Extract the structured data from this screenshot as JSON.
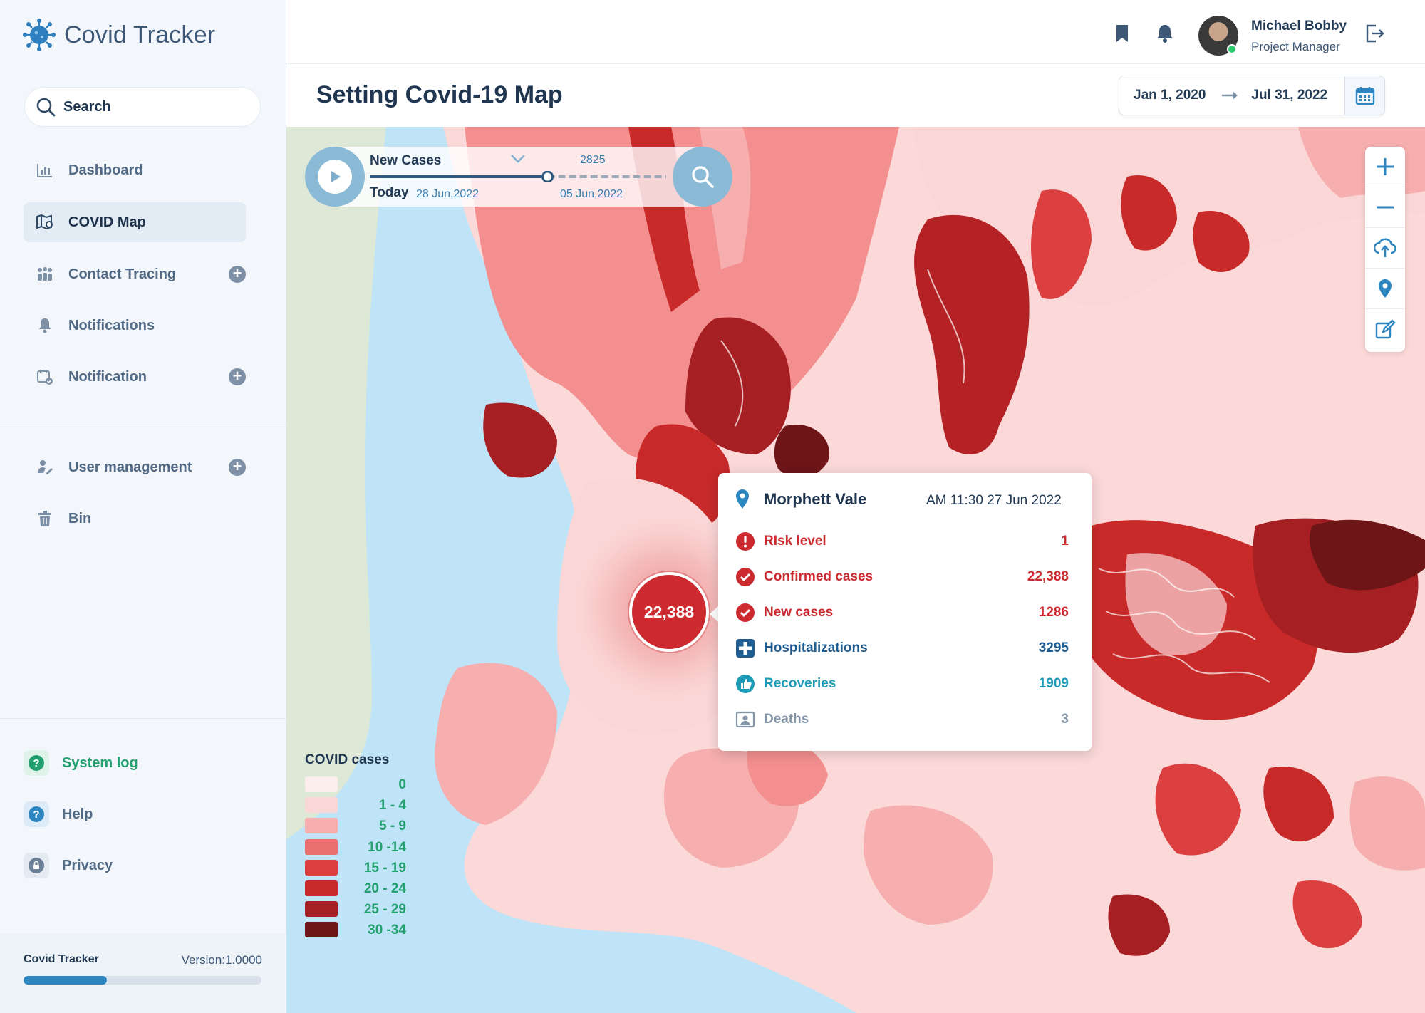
{
  "app": {
    "name": "Covid Tracker"
  },
  "search": {
    "placeholder": "Search"
  },
  "nav": [
    {
      "label": "Dashboard",
      "icon": "bar-chart-icon",
      "active": false
    },
    {
      "label": "COVID Map",
      "icon": "map-icon",
      "active": true
    },
    {
      "label": "Contact Tracing",
      "icon": "people-icon",
      "active": false
    },
    {
      "label": "Notifications",
      "icon": "bell-icon",
      "active": false
    },
    {
      "label": "Notification",
      "icon": "calendar-check-icon",
      "active": false
    },
    {
      "label": "User management",
      "icon": "user-edit-icon",
      "active": false
    },
    {
      "label": "Bin",
      "icon": "trash-icon",
      "active": false
    }
  ],
  "bottom_links": [
    {
      "label": "System log",
      "icon": "question-icon",
      "color": "#24a070"
    },
    {
      "label": "Help",
      "icon": "help-icon",
      "color": "#2e86c1"
    },
    {
      "label": "Privacy",
      "icon": "lock-icon",
      "color": "#526a85"
    }
  ],
  "footer": {
    "name": "Covid Tracker",
    "version": "Version:1.0000",
    "progress": 0.35
  },
  "user": {
    "name": "Michael Bobby",
    "role": "Project Manager",
    "status": "online"
  },
  "page": {
    "title": "Setting Covid-19 Map"
  },
  "date_range": {
    "start": "Jan 1, 2020",
    "end": "Jul 31, 2022"
  },
  "player": {
    "metric": "New Cases",
    "value": "2825",
    "today_label": "Today",
    "start_date": "28 Jun,2022",
    "end_date": "05 Jun,2022",
    "position": 0.6
  },
  "map_tools": [
    "zoom-in-icon",
    "zoom-out-icon",
    "upload-cloud-icon",
    "location-pin-icon",
    "edit-icon"
  ],
  "cluster": {
    "value": "22,388"
  },
  "popup": {
    "place": "Morphett Vale",
    "time": "AM 11:30 27 Jun 2022",
    "rows": [
      {
        "label": "RIsk level",
        "value": "1",
        "color": "#cc2a2f",
        "icon": "alert-icon"
      },
      {
        "label": "Confirmed cases",
        "value": "22,388",
        "color": "#cc2a2f",
        "icon": "check-circle-icon"
      },
      {
        "label": "New cases",
        "value": "1286",
        "color": "#cc2a2f",
        "icon": "check-circle-icon"
      },
      {
        "label": "Hospitalizations",
        "value": "3295",
        "color": "#1f5c8f",
        "icon": "hospital-cross-icon"
      },
      {
        "label": "Recoveries",
        "value": "1909",
        "color": "#1f9bb8",
        "icon": "thumbs-up-icon"
      },
      {
        "label": "Deaths",
        "value": "3",
        "color": "#8496a8",
        "icon": "portrait-icon"
      }
    ]
  },
  "legend": {
    "title": "COVID cases",
    "items": [
      {
        "label": "0",
        "color": "#fdeeee"
      },
      {
        "label": "1 - 4",
        "color": "#fbd6d6"
      },
      {
        "label": "5 - 9",
        "color": "#f6aeae"
      },
      {
        "label": "10 -14",
        "color": "#ea6f6f"
      },
      {
        "label": "15 - 19",
        "color": "#dc3f3f"
      },
      {
        "label": "20 - 24",
        "color": "#c82a2a"
      },
      {
        "label": "25 - 29",
        "color": "#a51f23"
      },
      {
        "label": "30 -34",
        "color": "#6e1518"
      }
    ]
  }
}
